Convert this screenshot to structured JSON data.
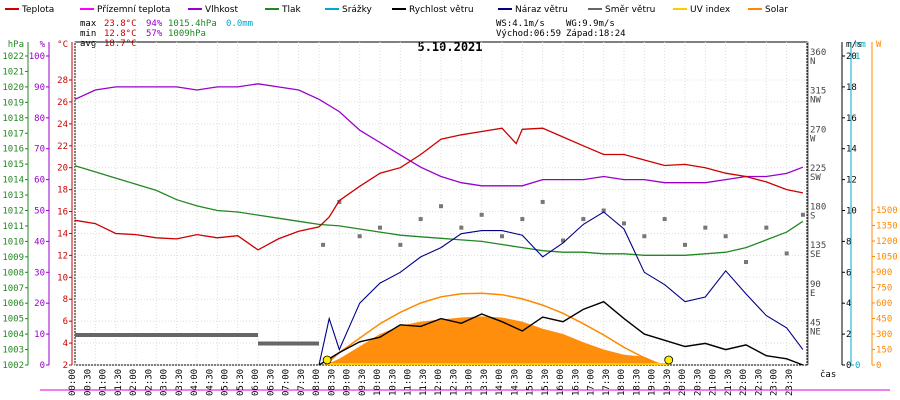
{
  "chart_data": {
    "type": "line",
    "title": "5.10.2021",
    "legend": [
      {
        "label": "Teplota",
        "color": "#cc0000"
      },
      {
        "label": "Přízemní teplota",
        "color": "#ff00ff"
      },
      {
        "label": "Vlhkost",
        "color": "#9900cc"
      },
      {
        "label": "Tlak",
        "color": "#228822"
      },
      {
        "label": "Srážky",
        "color": "#00aacc"
      },
      {
        "label": "Rychlost větru",
        "color": "#000000"
      },
      {
        "label": "Náraz větru",
        "color": "#000088"
      },
      {
        "label": "Směr větru",
        "color": "#666666"
      },
      {
        "label": "UV index",
        "color": "#ffcc00"
      },
      {
        "label": "Solar",
        "color": "#ff8800"
      }
    ],
    "stats": {
      "max_label": "max",
      "min_label": "min",
      "avg_label": "avg",
      "max_temp": "23.8°C",
      "max_hum": "94%",
      "max_press": "1015.4hPa",
      "max_rain": "0.0mm",
      "min_temp": "12.8°C",
      "min_hum": "57%",
      "min_press": "1009hPa",
      "avg_temp": "18.7°C",
      "ws": "WS:4.1m/s",
      "wg": "WG:9.9m/s",
      "sunrise": "Východ:06:59",
      "sunset": "Západ:18:24"
    },
    "x_label": "čas",
    "x_ticks": [
      "00:00",
      "00:30",
      "01:00",
      "01:30",
      "02:00",
      "02:30",
      "03:00",
      "03:30",
      "04:00",
      "04:30",
      "05:00",
      "05:30",
      "06:00",
      "06:30",
      "07:00",
      "07:30",
      "08:00",
      "08:30",
      "09:00",
      "09:30",
      "10:00",
      "10:30",
      "11:00",
      "11:30",
      "12:00",
      "12:30",
      "13:00",
      "13:30",
      "14:00",
      "14:30",
      "15:00",
      "15:30",
      "16:00",
      "16:30",
      "17:00",
      "17:30",
      "18:00",
      "18:30",
      "19:00",
      "19:30",
      "20:00",
      "20:30",
      "21:00",
      "21:30",
      "22:00",
      "22:30",
      "23:00",
      "23:30"
    ],
    "axes": {
      "hpa": {
        "label": "hPa",
        "color": "#228822",
        "ticks": [
          "1002",
          "1003",
          "1004",
          "1005",
          "1006",
          "1007",
          "1008",
          "1009",
          "1010",
          "1011",
          "1012",
          "1013",
          "1014",
          "1015",
          "1016",
          "1017",
          "1018",
          "1019",
          "1020",
          "1021",
          "1022"
        ]
      },
      "pct": {
        "label": "%",
        "color": "#9900cc",
        "ticks": [
          "0",
          "10",
          "20",
          "30",
          "40",
          "50",
          "60",
          "70",
          "80",
          "90",
          "100"
        ]
      },
      "degc": {
        "label": "°C",
        "color": "#cc0000",
        "ticks": [
          "2",
          "4",
          "6",
          "8",
          "10",
          "12",
          "14",
          "16",
          "18",
          "20",
          "22",
          "24",
          "26",
          "28"
        ]
      },
      "dir": {
        "label": "",
        "color": "#666666",
        "ticks": [
          "NE 45",
          "E 90",
          "SE 135",
          "S 180",
          "SW 225",
          "W 270",
          "NW 315",
          "N 360"
        ]
      },
      "ms": {
        "label": "m/s",
        "color": "#000000",
        "ticks": [
          "0",
          "2",
          "4",
          "6",
          "8",
          "10",
          "12",
          "14",
          "16",
          "18",
          "20"
        ]
      },
      "mm": {
        "label": "mm",
        "color": "#00aacc",
        "ticks": [
          "0",
          "1"
        ]
      },
      "wm2": {
        "label": "W",
        "color": "#ff8800",
        "ticks": [
          "0",
          "150",
          "300",
          "450",
          "600",
          "750",
          "900",
          "1050",
          "1200",
          "1350",
          "1500"
        ]
      }
    },
    "series": {
      "temperature_c": [
        [
          0,
          15.2
        ],
        [
          1,
          14.9
        ],
        [
          2,
          14.0
        ],
        [
          3,
          13.9
        ],
        [
          4,
          13.6
        ],
        [
          5,
          13.5
        ],
        [
          6,
          13.9
        ],
        [
          7,
          13.6
        ],
        [
          8,
          13.8
        ],
        [
          9,
          12.5
        ],
        [
          10,
          13.5
        ],
        [
          11,
          14.2
        ],
        [
          12,
          14.6
        ],
        [
          12.5,
          15.5
        ],
        [
          13,
          17.0
        ],
        [
          14,
          18.3
        ],
        [
          15,
          19.5
        ],
        [
          16,
          20.0
        ],
        [
          17,
          21.2
        ],
        [
          18,
          22.6
        ],
        [
          19,
          23.0
        ],
        [
          20,
          23.3
        ],
        [
          21,
          23.6
        ],
        [
          21.7,
          22.2
        ],
        [
          22,
          23.5
        ],
        [
          23,
          23.6
        ],
        [
          24,
          22.8
        ],
        [
          25,
          22.0
        ],
        [
          26,
          21.2
        ],
        [
          27,
          21.2
        ],
        [
          28,
          20.7
        ],
        [
          29,
          20.2
        ],
        [
          30,
          20.3
        ],
        [
          31,
          20.0
        ],
        [
          32,
          19.5
        ],
        [
          33,
          19.2
        ],
        [
          34,
          18.7
        ],
        [
          35,
          18.0
        ],
        [
          35.8,
          17.7
        ]
      ],
      "humidity_pct": [
        [
          0,
          86
        ],
        [
          1,
          89
        ],
        [
          2,
          90
        ],
        [
          3,
          90
        ],
        [
          4,
          90
        ],
        [
          5,
          90
        ],
        [
          6,
          89
        ],
        [
          7,
          90
        ],
        [
          8,
          90
        ],
        [
          9,
          91
        ],
        [
          10,
          90
        ],
        [
          11,
          89
        ],
        [
          12,
          86
        ],
        [
          13,
          82
        ],
        [
          14,
          76
        ],
        [
          15,
          72
        ],
        [
          16,
          68
        ],
        [
          17,
          64
        ],
        [
          18,
          61
        ],
        [
          19,
          59
        ],
        [
          20,
          58
        ],
        [
          21,
          58
        ],
        [
          22,
          58
        ],
        [
          23,
          60
        ],
        [
          24,
          60
        ],
        [
          25,
          60
        ],
        [
          26,
          61
        ],
        [
          27,
          60
        ],
        [
          28,
          60
        ],
        [
          29,
          59
        ],
        [
          30,
          59
        ],
        [
          31,
          59
        ],
        [
          32,
          60
        ],
        [
          33,
          61
        ],
        [
          34,
          61
        ],
        [
          35,
          62
        ],
        [
          35.8,
          64
        ]
      ],
      "pressure_hpa": [
        [
          0,
          1014.9
        ],
        [
          1,
          1014.5
        ],
        [
          2,
          1014.1
        ],
        [
          3,
          1013.7
        ],
        [
          4,
          1013.3
        ],
        [
          5,
          1012.7
        ],
        [
          6,
          1012.3
        ],
        [
          7,
          1012.0
        ],
        [
          8,
          1011.9
        ],
        [
          9,
          1011.7
        ],
        [
          10,
          1011.5
        ],
        [
          11,
          1011.3
        ],
        [
          12,
          1011.1
        ],
        [
          13,
          1011.0
        ],
        [
          14,
          1010.8
        ],
        [
          15,
          1010.6
        ],
        [
          16,
          1010.4
        ],
        [
          17,
          1010.3
        ],
        [
          18,
          1010.2
        ],
        [
          19,
          1010.1
        ],
        [
          20,
          1010.0
        ],
        [
          21,
          1009.8
        ],
        [
          22,
          1009.6
        ],
        [
          23,
          1009.4
        ],
        [
          24,
          1009.3
        ],
        [
          25,
          1009.3
        ],
        [
          26,
          1009.2
        ],
        [
          27,
          1009.2
        ],
        [
          28,
          1009.1
        ],
        [
          29,
          1009.1
        ],
        [
          30,
          1009.1
        ],
        [
          31,
          1009.2
        ],
        [
          32,
          1009.3
        ],
        [
          33,
          1009.6
        ],
        [
          34,
          1010.1
        ],
        [
          35,
          1010.6
        ],
        [
          35.8,
          1011.3
        ]
      ],
      "solar_wm2": [
        [
          12.3,
          0
        ],
        [
          13,
          60
        ],
        [
          14,
          180
        ],
        [
          15,
          300
        ],
        [
          16,
          380
        ],
        [
          17,
          420
        ],
        [
          18,
          440
        ],
        [
          19,
          460
        ],
        [
          20,
          470
        ],
        [
          21,
          460
        ],
        [
          22,
          420
        ],
        [
          23,
          350
        ],
        [
          24,
          300
        ],
        [
          25,
          220
        ],
        [
          26,
          150
        ],
        [
          27,
          100
        ],
        [
          28,
          80
        ],
        [
          28.6,
          30
        ],
        [
          29,
          0
        ]
      ],
      "solar_clear_wm2": [
        [
          12.3,
          0
        ],
        [
          13,
          120
        ],
        [
          14,
          260
        ],
        [
          15,
          400
        ],
        [
          16,
          510
        ],
        [
          17,
          600
        ],
        [
          18,
          660
        ],
        [
          19,
          690
        ],
        [
          20,
          695
        ],
        [
          21,
          680
        ],
        [
          22,
          640
        ],
        [
          23,
          580
        ],
        [
          24,
          500
        ],
        [
          25,
          400
        ],
        [
          26,
          290
        ],
        [
          27,
          170
        ],
        [
          28,
          70
        ],
        [
          28.6,
          0
        ]
      ],
      "wind_speed_ms": [
        [
          12,
          0
        ],
        [
          13,
          0.8
        ],
        [
          14,
          1.5
        ],
        [
          15,
          1.8
        ],
        [
          16,
          2.6
        ],
        [
          17,
          2.5
        ],
        [
          18,
          3.0
        ],
        [
          19,
          2.7
        ],
        [
          20,
          3.3
        ],
        [
          21,
          2.8
        ],
        [
          22,
          2.2
        ],
        [
          23,
          3.1
        ],
        [
          24,
          2.8
        ],
        [
          25,
          3.6
        ],
        [
          26,
          4.1
        ],
        [
          27,
          3.0
        ],
        [
          28,
          2.0
        ],
        [
          29,
          1.6
        ],
        [
          30,
          1.2
        ],
        [
          31,
          1.4
        ],
        [
          32,
          1.0
        ],
        [
          33,
          1.3
        ],
        [
          34,
          0.6
        ],
        [
          35,
          0.4
        ],
        [
          35.8,
          0
        ]
      ],
      "wind_gust_ms": [
        [
          12,
          0
        ],
        [
          12.5,
          3
        ],
        [
          13,
          1.0
        ],
        [
          14,
          4.0
        ],
        [
          15,
          5.3
        ],
        [
          16,
          6.0
        ],
        [
          17,
          7.0
        ],
        [
          18,
          7.6
        ],
        [
          19,
          8.5
        ],
        [
          20,
          8.7
        ],
        [
          21,
          8.7
        ],
        [
          22,
          8.4
        ],
        [
          23,
          7.0
        ],
        [
          24,
          7.9
        ],
        [
          25,
          9.1
        ],
        [
          26,
          9.9
        ],
        [
          27,
          8.8
        ],
        [
          28,
          6.0
        ],
        [
          29,
          5.2
        ],
        [
          30,
          4.1
        ],
        [
          31,
          4.4
        ],
        [
          32,
          6.1
        ],
        [
          33,
          4.6
        ],
        [
          34,
          3.2
        ],
        [
          35,
          2.4
        ],
        [
          35.8,
          1.0
        ]
      ],
      "wind_dir_deg": [
        [
          0,
          35
        ],
        [
          9,
          35
        ],
        [
          9.1,
          25
        ],
        [
          12,
          25
        ],
        [
          12.2,
          140
        ],
        [
          13,
          190
        ],
        [
          14,
          150
        ],
        [
          15,
          160
        ],
        [
          16,
          140
        ],
        [
          17,
          170
        ],
        [
          18,
          185
        ],
        [
          19,
          160
        ],
        [
          20,
          175
        ],
        [
          21,
          150
        ],
        [
          22,
          170
        ],
        [
          23,
          190
        ],
        [
          24,
          145
        ],
        [
          25,
          170
        ],
        [
          26,
          180
        ],
        [
          27,
          165
        ],
        [
          28,
          150
        ],
        [
          29,
          170
        ],
        [
          30,
          140
        ],
        [
          31,
          160
        ],
        [
          32,
          150
        ],
        [
          33,
          120
        ],
        [
          34,
          160
        ],
        [
          35,
          130
        ],
        [
          35.8,
          175
        ]
      ],
      "uv_index": [
        [
          12.4,
          0
        ],
        [
          29.2,
          0
        ]
      ]
    }
  }
}
